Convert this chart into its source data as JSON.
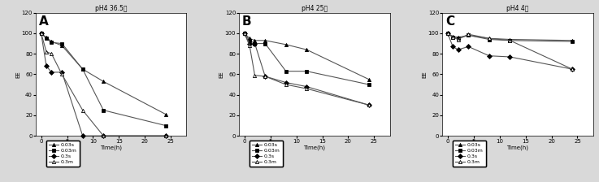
{
  "panels": [
    {
      "label": "A",
      "title": "pH4 36.5도",
      "series": [
        {
          "name": "0.03s",
          "x": [
            0,
            1,
            2,
            4,
            8,
            12,
            24
          ],
          "y": [
            100,
            96,
            92,
            88,
            65,
            53,
            21
          ]
        },
        {
          "name": "0.03m",
          "x": [
            0,
            1,
            2,
            4,
            8,
            12,
            24
          ],
          "y": [
            100,
            95,
            91,
            90,
            65,
            25,
            10
          ]
        },
        {
          "name": "0.3s",
          "x": [
            0,
            1,
            2,
            4,
            8,
            12,
            24
          ],
          "y": [
            100,
            68,
            62,
            62,
            0,
            0,
            0
          ]
        },
        {
          "name": "0.3m",
          "x": [
            0,
            1,
            2,
            4,
            8,
            12,
            24
          ],
          "y": [
            100,
            82,
            80,
            60,
            25,
            0,
            0
          ]
        }
      ]
    },
    {
      "label": "B",
      "title": "pH4 25도",
      "series": [
        {
          "name": "0.03s",
          "x": [
            0,
            1,
            2,
            4,
            8,
            12,
            24
          ],
          "y": [
            100,
            95,
            93,
            93,
            89,
            84,
            55
          ]
        },
        {
          "name": "0.03m",
          "x": [
            0,
            1,
            2,
            4,
            8,
            12,
            24
          ],
          "y": [
            100,
            93,
            90,
            90,
            63,
            63,
            50
          ]
        },
        {
          "name": "0.3s",
          "x": [
            0,
            1,
            2,
            4,
            8,
            12,
            24
          ],
          "y": [
            100,
            90,
            90,
            58,
            52,
            48,
            30
          ]
        },
        {
          "name": "0.3m",
          "x": [
            0,
            1,
            2,
            4,
            8,
            12,
            24
          ],
          "y": [
            100,
            88,
            59,
            58,
            50,
            46,
            30
          ]
        }
      ]
    },
    {
      "label": "C",
      "title": "pH4 4도",
      "series": [
        {
          "name": "0.03s",
          "x": [
            0,
            1,
            2,
            4,
            8,
            12,
            24
          ],
          "y": [
            100,
            97,
            96,
            98,
            95,
            94,
            93
          ]
        },
        {
          "name": "0.03m",
          "x": [
            0,
            1,
            2,
            4,
            8,
            12,
            24
          ],
          "y": [
            100,
            96,
            95,
            98,
            94,
            93,
            92
          ]
        },
        {
          "name": "0.3s",
          "x": [
            0,
            1,
            2,
            4,
            8,
            12,
            24
          ],
          "y": [
            100,
            87,
            84,
            87,
            78,
            77,
            65
          ]
        },
        {
          "name": "0.3m",
          "x": [
            0,
            1,
            2,
            4,
            8,
            12,
            24
          ],
          "y": [
            100,
            96,
            94,
            99,
            95,
            93,
            65
          ]
        }
      ]
    }
  ],
  "marker_styles": [
    {
      "marker": "^",
      "mfc": "black",
      "mec": "black"
    },
    {
      "marker": "s",
      "mfc": "black",
      "mec": "black"
    },
    {
      "marker": "D",
      "mfc": "black",
      "mec": "black"
    },
    {
      "marker": "^",
      "mfc": "white",
      "mec": "black"
    }
  ],
  "line_color": "#555555",
  "linewidth": 0.8,
  "markersize": 3,
  "ylim": [
    0,
    120
  ],
  "yticks": [
    0,
    20,
    40,
    60,
    80,
    100,
    120
  ],
  "xlim": [
    -1,
    28
  ],
  "xticks": [
    0,
    5,
    10,
    15,
    20,
    25
  ],
  "xlabel": "Time(h)",
  "ylabel": "EE",
  "bg_color": "#d9d9d9",
  "plot_bg": "#ffffff",
  "title_fontsize": 5.5,
  "label_fontsize": 5,
  "tick_fontsize": 5,
  "panel_label_fontsize": 11
}
